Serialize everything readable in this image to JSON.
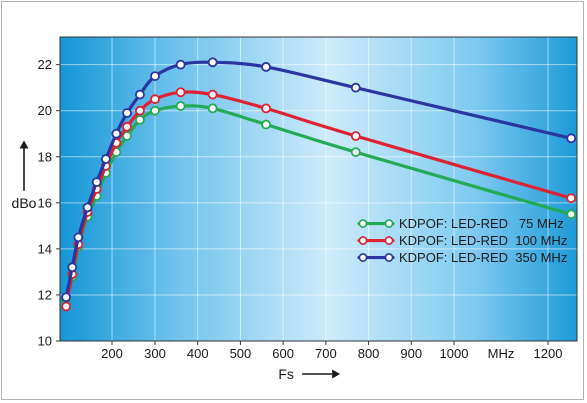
{
  "chart_data": {
    "type": "line",
    "xlabel": "Fs",
    "ylabel": "dBo",
    "x_unit": "MHz",
    "x_ticks": [
      200,
      300,
      400,
      500,
      600,
      700,
      800,
      900,
      1000,
      1200
    ],
    "y_ticks": [
      10,
      12,
      14,
      16,
      18,
      20,
      22
    ],
    "xlim": [
      115,
      1250
    ],
    "ylim": [
      10,
      23.2
    ],
    "grid": true,
    "legend_position": "bottom-right",
    "series": [
      {
        "name": "KDPOF: LED-RED   75 MHz",
        "color": "#22aa55",
        "x": [
          125,
          135,
          145,
          160,
          175,
          190,
          210,
          235,
          265,
          300,
          360,
          435,
          560,
          770,
          1240
        ],
        "y": [
          11.8,
          12.8,
          14.1,
          15.4,
          16.3,
          17.3,
          18.2,
          18.9,
          19.6,
          20.0,
          20.2,
          20.1,
          19.4,
          18.2,
          15.5
        ]
      },
      {
        "name": "KDPOF: LED-RED  100 MHz",
        "color": "#dd2233",
        "x": [
          125,
          135,
          145,
          160,
          175,
          190,
          210,
          235,
          265,
          300,
          360,
          435,
          560,
          770,
          1240
        ],
        "y": [
          11.5,
          12.9,
          14.2,
          15.6,
          16.6,
          17.6,
          18.6,
          19.3,
          20.0,
          20.5,
          20.8,
          20.7,
          20.1,
          18.9,
          16.2
        ]
      },
      {
        "name": "KDPOF: LED-RED  350 MHz",
        "color": "#2b35a0",
        "x": [
          125,
          135,
          145,
          160,
          175,
          190,
          210,
          235,
          265,
          300,
          360,
          435,
          560,
          770,
          1240
        ],
        "y": [
          11.9,
          13.2,
          14.5,
          15.8,
          16.9,
          17.9,
          19.0,
          19.9,
          20.7,
          21.5,
          22.0,
          22.1,
          21.9,
          21.0,
          18.8
        ]
      }
    ]
  }
}
